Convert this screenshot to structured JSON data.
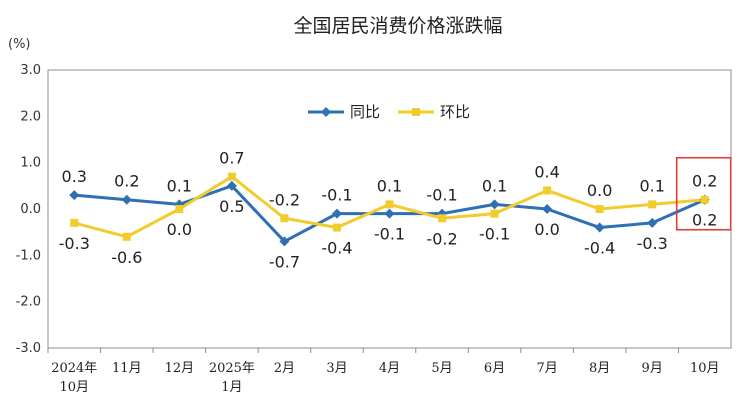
{
  "chart_data": {
    "type": "line",
    "title": "全国居民消费价格涨跌幅",
    "unit_label": "(%)",
    "categories": [
      [
        "2024年",
        "10月"
      ],
      [
        "11月"
      ],
      [
        "12月"
      ],
      [
        "2025年",
        "1月"
      ],
      [
        "2月"
      ],
      [
        "3月"
      ],
      [
        "4月"
      ],
      [
        "5月"
      ],
      [
        "6月"
      ],
      [
        "7月"
      ],
      [
        "8月"
      ],
      [
        "9月"
      ],
      [
        "10月"
      ]
    ],
    "yticks": [
      "3.0",
      "2.0",
      "1.0",
      "0.0",
      "-1.0",
      "-2.0",
      "-3.0"
    ],
    "ylim": [
      -3,
      3
    ],
    "legend_position": "top-center",
    "grid": false,
    "series": [
      {
        "name": "同比",
        "color": "#2f6fb3",
        "marker": "diamond",
        "values": [
          0.3,
          0.2,
          0.1,
          0.5,
          -0.7,
          -0.1,
          -0.1,
          -0.1,
          0.1,
          0.0,
          -0.4,
          -0.3,
          0.2
        ],
        "labels": [
          "0.3",
          "0.2",
          "0.1",
          "0.5",
          "-0.7",
          "-0.1",
          "-0.1",
          "-0.1",
          "0.1",
          "0.0",
          "-0.4",
          "-0.3",
          "0.2"
        ],
        "label_pos": [
          "above",
          "above",
          "above",
          "below",
          "below",
          "above",
          "below",
          "above",
          "above",
          "below",
          "below",
          "below",
          "below"
        ]
      },
      {
        "name": "环比",
        "color": "#f2cb2c",
        "marker": "square",
        "values": [
          -0.3,
          -0.6,
          0.0,
          0.7,
          -0.2,
          -0.4,
          0.1,
          -0.2,
          -0.1,
          0.4,
          0.0,
          0.1,
          0.2
        ],
        "labels": [
          "-0.3",
          "-0.6",
          "0.0",
          "0.7",
          "-0.2",
          "-0.4",
          "0.1",
          "-0.2",
          "-0.1",
          "0.4",
          "0.0",
          "0.1",
          "0.2"
        ],
        "label_pos": [
          "below",
          "below",
          "below",
          "above",
          "above",
          "below",
          "above",
          "below",
          "below",
          "above",
          "above",
          "above",
          "above"
        ]
      }
    ],
    "highlight": {
      "index": 12,
      "color": "#e03c3c"
    }
  }
}
